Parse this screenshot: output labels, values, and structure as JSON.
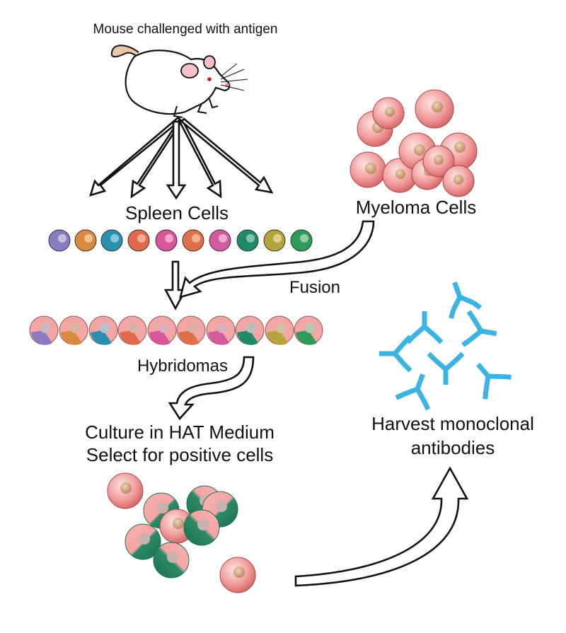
{
  "labels": {
    "mouse": "Mouse challenged with antigen",
    "spleen": "Spleen Cells",
    "myeloma": "Myeloma Cells",
    "fusion": "Fusion",
    "hybridomas": "Hybridomas",
    "culture_line1": "Culture in HAT Medium",
    "culture_line2": "Select for positive cells",
    "harvest_line1": "Harvest monoclonal",
    "harvest_line2": "antibodies"
  },
  "colors": {
    "spleen_cells": [
      "#8a7bc2",
      "#d98a3f",
      "#2b8fb0",
      "#e06a4a",
      "#d9559b",
      "#e07048",
      "#d45aa0",
      "#1f8a6a",
      "#b4a43a",
      "#2f9a5a"
    ],
    "myeloma": "#f2a0a0",
    "antibody": "#3bb3e3",
    "hybridoma_mix": "#f4a6a4",
    "positive_clone": "#2a8a66"
  }
}
